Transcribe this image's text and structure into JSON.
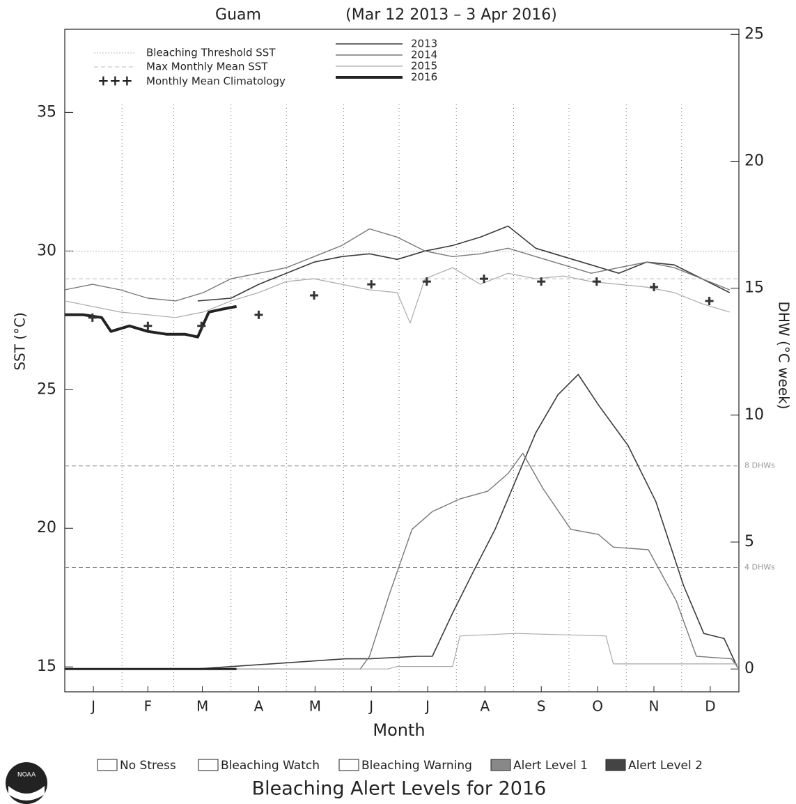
{
  "chart_data": {
    "type": "line",
    "title": "Guam",
    "subtitle": "(Mar 12 2013 – 3 Apr 2016)",
    "x_label": "Month",
    "y_label": "SST (°C)",
    "y2_label": "DHW (°C week)",
    "xlim": [
      0,
      365
    ],
    "xticks": [
      {
        "value": 15.5,
        "label": "J"
      },
      {
        "value": 45,
        "label": "F"
      },
      {
        "value": 74.5,
        "label": "M"
      },
      {
        "value": 105,
        "label": "A"
      },
      {
        "value": 135.5,
        "label": "M"
      },
      {
        "value": 166,
        "label": "J"
      },
      {
        "value": 196.5,
        "label": "J"
      },
      {
        "value": 227.5,
        "label": "A"
      },
      {
        "value": 258,
        "label": "S"
      },
      {
        "value": 288.5,
        "label": "O"
      },
      {
        "value": 319,
        "label": "N"
      },
      {
        "value": 349.5,
        "label": "D"
      }
    ],
    "x_grid": [
      31,
      59,
      90,
      120,
      151,
      181,
      212,
      243,
      273,
      304,
      334
    ],
    "ylim": [
      14.1,
      38.0
    ],
    "yticks": [
      15,
      20,
      25,
      30,
      35
    ],
    "y2lim": [
      -0.9,
      25.2
    ],
    "y2ticks": [
      0,
      5,
      10,
      15,
      20,
      25
    ],
    "thresholds": [
      {
        "name": "Bleaching Threshold SST",
        "value": 30.0,
        "color": "#bbbbbb"
      },
      {
        "name": "Max Monthly Mean SST",
        "value": 29.0,
        "color": "#bbbbbb"
      }
    ],
    "climatology": {
      "name": "Monthly Mean Climatology",
      "color": "#333333",
      "x": [
        15,
        45,
        74,
        105,
        135,
        166,
        196,
        227,
        258,
        288,
        319,
        349
      ],
      "values": [
        27.6,
        27.3,
        27.3,
        27.7,
        28.4,
        28.8,
        28.9,
        29.0,
        28.9,
        28.9,
        28.7,
        28.2
      ]
    },
    "dhw_levels": [
      {
        "value": 8,
        "label": "8 DHWs"
      },
      {
        "value": 4,
        "label": "4 DHWs"
      }
    ],
    "series": [
      {
        "name": "2013",
        "color": "#3a3a3a",
        "width": 1.6,
        "x": [
          72,
          90,
          105,
          120,
          135,
          150,
          165,
          180,
          195,
          210,
          225,
          240,
          255,
          270,
          285,
          300,
          315,
          330,
          345,
          360
        ],
        "values": [
          28.2,
          28.3,
          28.8,
          29.2,
          29.6,
          29.8,
          29.9,
          29.7,
          30.0,
          30.2,
          30.5,
          30.9,
          30.1,
          29.8,
          29.5,
          29.2,
          29.6,
          29.5,
          29.0,
          28.5
        ]
      },
      {
        "name": "2014",
        "color": "#777777",
        "width": 1.4,
        "x": [
          0,
          15,
          30,
          45,
          60,
          75,
          90,
          105,
          120,
          135,
          150,
          165,
          180,
          195,
          210,
          225,
          240,
          255,
          270,
          285,
          300,
          315,
          330,
          345,
          360
        ],
        "values": [
          28.6,
          28.8,
          28.6,
          28.3,
          28.2,
          28.5,
          29.0,
          29.2,
          29.4,
          29.8,
          30.2,
          30.8,
          30.5,
          30.0,
          29.8,
          29.9,
          30.1,
          29.8,
          29.5,
          29.2,
          29.4,
          29.6,
          29.4,
          29.0,
          28.6
        ]
      },
      {
        "name": "2015",
        "color": "#aaaaaa",
        "width": 1.2,
        "x": [
          0,
          15,
          30,
          45,
          60,
          75,
          90,
          105,
          120,
          135,
          150,
          165,
          180,
          187,
          195,
          210,
          225,
          240,
          255,
          270,
          285,
          300,
          315,
          330,
          345,
          360
        ],
        "values": [
          28.2,
          28.0,
          27.8,
          27.7,
          27.6,
          27.8,
          28.2,
          28.5,
          28.9,
          29.0,
          28.8,
          28.6,
          28.5,
          27.4,
          29.0,
          29.4,
          28.8,
          29.2,
          29.0,
          29.1,
          28.9,
          28.8,
          28.7,
          28.5,
          28.1,
          27.8
        ]
      },
      {
        "name": "2016",
        "color": "#222222",
        "width": 4,
        "x": [
          0,
          10,
          20,
          25,
          35,
          45,
          55,
          65,
          72,
          78,
          85,
          93
        ],
        "values": [
          27.7,
          27.7,
          27.6,
          27.1,
          27.3,
          27.1,
          27.0,
          27.0,
          26.9,
          27.8,
          27.9,
          28.0
        ]
      },
      {
        "name": "2013",
        "axis": "y2",
        "color": "#3a3a3a",
        "width": 1.6,
        "x": [
          71,
          152,
          165,
          191,
          199,
          210,
          221,
          233,
          244,
          255,
          267,
          278,
          289,
          305,
          320,
          335,
          346,
          357,
          364
        ],
        "values": [
          0,
          0.4,
          0.4,
          0.5,
          0.5,
          2.2,
          3.8,
          5.5,
          7.4,
          9.3,
          10.8,
          11.6,
          10.4,
          8.8,
          6.6,
          3.3,
          1.4,
          1.2,
          0.1
        ]
      },
      {
        "name": "2014",
        "axis": "y2",
        "color": "#777777",
        "width": 1.4,
        "x": [
          0,
          160,
          165,
          176,
          188,
          199,
          214,
          229,
          240,
          248,
          259,
          274,
          289,
          297,
          316,
          331,
          342,
          361,
          365
        ],
        "values": [
          0,
          0,
          0.5,
          3,
          5.5,
          6.2,
          6.7,
          7,
          7.7,
          8.5,
          7.1,
          5.5,
          5.3,
          4.8,
          4.7,
          2.7,
          0.5,
          0.4,
          0
        ]
      },
      {
        "name": "2015",
        "axis": "y2",
        "color": "#aaaaaa",
        "width": 1.2,
        "x": [
          0,
          175,
          180,
          210,
          214,
          244,
          293,
          297,
          365
        ],
        "values": [
          0,
          0,
          0.1,
          0.1,
          1.3,
          1.4,
          1.3,
          0.2,
          0.2
        ]
      },
      {
        "name": "2016",
        "axis": "y2",
        "color": "#222222",
        "width": 3,
        "x": [
          0,
          93
        ],
        "values": [
          0,
          0
        ]
      }
    ],
    "alert_legend": {
      "title": "Bleaching Alert Levels for 2016",
      "items": [
        {
          "name": "No Stress",
          "color": "#ffffff"
        },
        {
          "name": "Bleaching Watch",
          "color": "#ffffff"
        },
        {
          "name": "Bleaching Warning",
          "color": "#ffffff"
        },
        {
          "name": "Alert Level 1",
          "color": "#888888"
        },
        {
          "name": "Alert Level 2",
          "color": "#444444"
        }
      ]
    },
    "logo_text": "NOAA"
  }
}
